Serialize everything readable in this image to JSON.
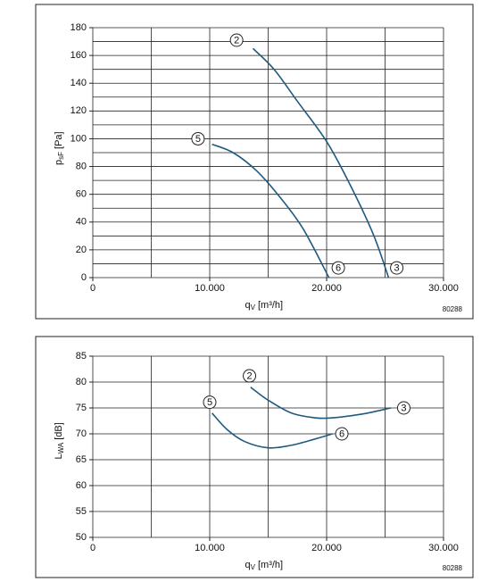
{
  "chart_data": [
    {
      "type": "line",
      "xlabel": [
        "q",
        "V",
        "[m³/h]"
      ],
      "ylabel": [
        "p",
        "sF",
        "[Pa]"
      ],
      "code": "80288",
      "xlim": [
        0,
        30000
      ],
      "xticks": [
        {
          "value": 0,
          "label": "0"
        },
        {
          "value": 10000,
          "label": "10.000"
        },
        {
          "value": 20000,
          "label": "20.000"
        },
        {
          "value": 30000,
          "label": "30.000"
        }
      ],
      "minor_xticks": [
        5000,
        15000,
        25000
      ],
      "ylim": [
        0,
        180
      ],
      "yticks": [
        0,
        20,
        40,
        60,
        80,
        100,
        120,
        140,
        160,
        180
      ],
      "minor_yticks": [
        10,
        30,
        50,
        70,
        90,
        110,
        130,
        150,
        170
      ],
      "grid": true,
      "series": [
        {
          "color": "#1f5a80",
          "x": [
            13700,
            15500,
            17500,
            20000,
            22000,
            24000,
            25300
          ],
          "values": [
            165,
            150,
            127,
            98,
            67,
            31,
            0
          ]
        },
        {
          "color": "#1f5a80",
          "x": [
            10200,
            12000,
            14000,
            16000,
            18000,
            20200
          ],
          "values": [
            96,
            90,
            77,
            58,
            35,
            0
          ]
        }
      ],
      "annotations": [
        {
          "text": "2",
          "x": 12300,
          "y": 171
        },
        {
          "text": "5",
          "x": 9000,
          "y": 100
        },
        {
          "text": "6",
          "x": 21000,
          "y": 7
        },
        {
          "text": "3",
          "x": 26000,
          "y": 7
        }
      ]
    },
    {
      "type": "line",
      "xlabel": [
        "q",
        "V",
        "[m³/h]"
      ],
      "ylabel": [
        "L",
        "WA",
        "[dB]"
      ],
      "code": "80288",
      "xlim": [
        0,
        30000
      ],
      "xticks": [
        {
          "value": 0,
          "label": "0"
        },
        {
          "value": 10000,
          "label": "10.000"
        },
        {
          "value": 20000,
          "label": "20.000"
        },
        {
          "value": 30000,
          "label": "30.000"
        }
      ],
      "minor_xticks": [
        5000,
        15000,
        25000
      ],
      "ylim": [
        50,
        85
      ],
      "yticks": [
        50,
        55,
        60,
        65,
        70,
        75,
        80,
        85
      ],
      "minor_yticks": [],
      "grid": true,
      "series": [
        {
          "color": "#1f5a80",
          "x": [
            13500,
            15000,
            17000,
            19000,
            20500,
            23000,
            25500
          ],
          "values": [
            79,
            76.5,
            74,
            73.1,
            73.1,
            73.8,
            75
          ]
        },
        {
          "color": "#1f5a80",
          "x": [
            10200,
            11500,
            13000,
            15000,
            17000,
            19000,
            20500
          ],
          "values": [
            74,
            70.8,
            68.5,
            67.3,
            67.8,
            69,
            70
          ]
        }
      ],
      "annotations": [
        {
          "text": "2",
          "x": 13400,
          "y": 81.2
        },
        {
          "text": "5",
          "x": 10000,
          "y": 76.1
        },
        {
          "text": "3",
          "x": 26600,
          "y": 75
        },
        {
          "text": "6",
          "x": 21300,
          "y": 70
        }
      ]
    }
  ]
}
